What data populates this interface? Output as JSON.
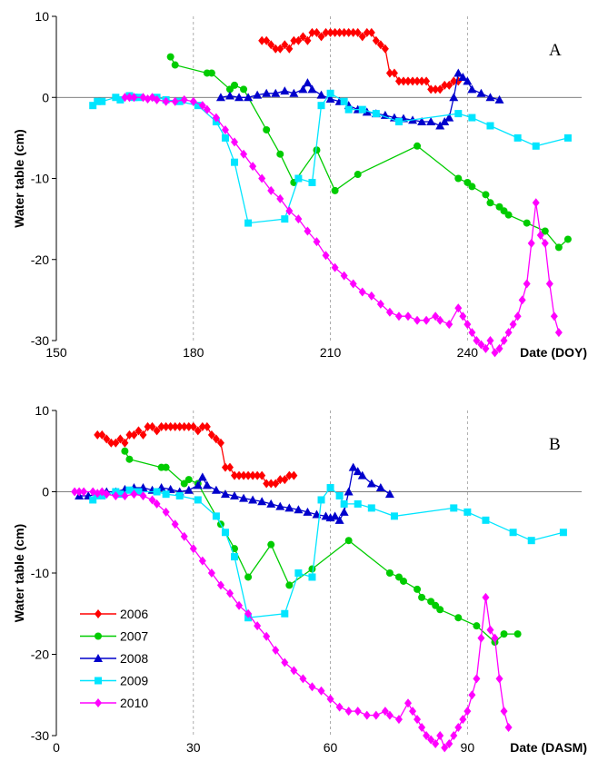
{
  "colors": {
    "2006": "#ff0000",
    "2007": "#00cc00",
    "2008": "#0000cc",
    "2009": "#00e5ff",
    "2010": "#ff00ff"
  },
  "markers": {
    "2006": "diamond",
    "2007": "circle",
    "2008": "triangle",
    "2009": "square",
    "2010": "diamond"
  },
  "legend": {
    "placement": "bottom-left",
    "entries": [
      "2006",
      "2007",
      "2008",
      "2009",
      "2010"
    ]
  },
  "chart_data": [
    {
      "type": "line",
      "panel_label": "A",
      "xlabel": "Date (DOY)",
      "ylabel": "Water table (cm)",
      "xlim": [
        150,
        265
      ],
      "ylim": [
        -30,
        10
      ],
      "xticks": [
        150,
        180,
        210,
        240
      ],
      "yticks": [
        10,
        0,
        -10,
        -20,
        -30
      ],
      "vgrid": [
        180,
        210,
        240
      ],
      "series": [
        {
          "name": "2006",
          "x": [
            195,
            196,
            197,
            198,
            199,
            200,
            201,
            202,
            203,
            204,
            205,
            206,
            207,
            208,
            209,
            210,
            211,
            212,
            213,
            214,
            215,
            216,
            217,
            218,
            219,
            220,
            221,
            222,
            223,
            224,
            225,
            226,
            227,
            228,
            229,
            230,
            231,
            232,
            233,
            234,
            235,
            236,
            237,
            238
          ],
          "y": [
            7,
            7,
            6.5,
            6,
            6,
            6.5,
            6,
            7,
            7,
            7.5,
            7,
            8,
            8,
            7.5,
            8,
            8,
            8,
            8,
            8,
            8,
            8,
            8,
            7.5,
            8,
            8,
            7,
            6.5,
            6,
            3,
            3,
            2,
            2,
            2,
            2,
            2,
            2,
            2,
            1,
            1,
            1,
            1.5,
            1.5,
            2,
            2
          ]
        },
        {
          "name": "2007",
          "x": [
            175,
            176,
            183,
            184,
            188,
            189,
            191,
            196,
            199,
            202,
            207,
            211,
            216,
            229,
            238,
            240,
            241,
            244,
            245,
            247,
            248,
            249,
            253,
            257,
            260,
            262
          ],
          "y": [
            5,
            4,
            3,
            3,
            1,
            1.5,
            1,
            -4,
            -7,
            -10.5,
            -6.5,
            -11.5,
            -9.5,
            -6,
            -10,
            -10.5,
            -11,
            -12,
            -13,
            -13.5,
            -14,
            -14.5,
            -15.5,
            -16.5,
            -18.5,
            -17.5
          ]
        },
        {
          "name": "2008",
          "x": [
            186,
            188,
            190,
            192,
            194,
            196,
            198,
            200,
            202,
            204,
            205,
            206,
            208,
            210,
            212,
            214,
            216,
            218,
            220,
            222,
            224,
            226,
            228,
            230,
            232,
            234,
            235,
            236,
            237,
            238,
            239,
            240,
            241,
            243,
            245,
            247
          ],
          "y": [
            0,
            0.2,
            0,
            0,
            0.3,
            0.5,
            0.5,
            0.8,
            0.5,
            1,
            1.8,
            1,
            0.3,
            -0.2,
            -0.5,
            -1,
            -1.5,
            -1.8,
            -2,
            -2.2,
            -2.5,
            -2.6,
            -2.8,
            -3,
            -3,
            -3.5,
            -3,
            -2.5,
            0,
            3,
            2.5,
            2,
            1,
            0.5,
            0,
            -0.3
          ]
        },
        {
          "name": "2009",
          "x": [
            158,
            159,
            160,
            163,
            164,
            166,
            167,
            168,
            172,
            174,
            177,
            181,
            185,
            187,
            189,
            192,
            200,
            203,
            206,
            208,
            210,
            213,
            214,
            217,
            220,
            225,
            238,
            241,
            245,
            251,
            255,
            262
          ],
          "y": [
            -1,
            -0.5,
            -0.5,
            0,
            -0.3,
            0.2,
            0,
            0,
            0,
            -0.3,
            -0.5,
            -1,
            -3,
            -5,
            -8,
            -15.5,
            -15,
            -10,
            -10.5,
            -1,
            0.5,
            -0.5,
            -1.5,
            -1.5,
            -2,
            -3,
            -2,
            -2.5,
            -3.5,
            -5,
            -6,
            -5
          ]
        },
        {
          "name": "2010",
          "x": [
            165,
            166,
            167,
            169,
            170,
            171,
            172,
            174,
            176,
            178,
            180,
            182,
            183,
            185,
            187,
            189,
            191,
            193,
            195,
            197,
            199,
            201,
            203,
            205,
            207,
            209,
            211,
            213,
            215,
            217,
            219,
            221,
            223,
            225,
            227,
            229,
            231,
            233,
            234,
            236,
            238,
            239,
            240,
            241,
            242,
            243,
            244,
            245,
            246,
            247,
            248,
            249,
            250,
            251,
            252,
            253,
            254,
            255,
            256,
            257,
            258,
            259,
            260
          ],
          "y": [
            0,
            0,
            0,
            0,
            -0.2,
            0,
            -0.3,
            -0.5,
            -0.5,
            -0.3,
            -0.5,
            -1,
            -1.5,
            -2.5,
            -4,
            -5.5,
            -7,
            -8.5,
            -10,
            -11.5,
            -12.5,
            -14,
            -15,
            -16.5,
            -17.8,
            -19.5,
            -21,
            -22,
            -23,
            -24,
            -24.5,
            -25.5,
            -26.5,
            -27,
            -27,
            -27.5,
            -27.5,
            -27,
            -27.5,
            -28,
            -26,
            -27,
            -28,
            -29,
            -30,
            -30.5,
            -31,
            -30,
            -31.5,
            -31,
            -30,
            -29,
            -28,
            -27,
            -25,
            -23,
            -18,
            -13,
            -17,
            -18,
            -23,
            -27,
            -29
          ]
        }
      ]
    },
    {
      "type": "line",
      "panel_label": "B",
      "xlabel": "Date (DASM)",
      "ylabel": "Water table (cm)",
      "xlim": [
        0,
        115
      ],
      "ylim": [
        -30,
        10
      ],
      "xticks": [
        0,
        30,
        60,
        90
      ],
      "yticks": [
        10,
        0,
        -10,
        -20,
        -30
      ],
      "vgrid": [
        30,
        60,
        90
      ],
      "series": [
        {
          "name": "2006",
          "x": [
            9,
            10,
            11,
            12,
            13,
            14,
            15,
            16,
            17,
            18,
            19,
            20,
            21,
            22,
            23,
            24,
            25,
            26,
            27,
            28,
            29,
            30,
            31,
            32,
            33,
            34,
            35,
            36,
            37,
            38,
            39,
            40,
            41,
            42,
            43,
            44,
            45,
            46,
            47,
            48,
            49,
            50,
            51,
            52
          ],
          "y": [
            7,
            7,
            6.5,
            6,
            6,
            6.5,
            6,
            7,
            7,
            7.5,
            7,
            8,
            8,
            7.5,
            8,
            8,
            8,
            8,
            8,
            8,
            8,
            8,
            7.5,
            8,
            8,
            7,
            6.5,
            6,
            3,
            3,
            2,
            2,
            2,
            2,
            2,
            2,
            2,
            1,
            1,
            1,
            1.5,
            1.5,
            2,
            2
          ]
        },
        {
          "name": "2007",
          "x": [
            15,
            16,
            23,
            24,
            28,
            29,
            31,
            36,
            39,
            42,
            47,
            51,
            56,
            64,
            73,
            75,
            76,
            79,
            80,
            82,
            83,
            84,
            88,
            92,
            96,
            98,
            101
          ],
          "y": [
            5,
            4,
            3,
            3,
            1,
            1.5,
            1,
            -4,
            -7,
            -10.5,
            -6.5,
            -11.5,
            -9.5,
            -6,
            -10,
            -10.5,
            -11,
            -12,
            -13,
            -13.5,
            -14,
            -14.5,
            -15.5,
            -16.5,
            -18.5,
            -17.5,
            -17.5
          ]
        },
        {
          "name": "2008",
          "x": [
            5,
            7,
            9,
            11,
            13,
            15,
            17,
            19,
            21,
            23,
            25,
            27,
            29,
            31,
            32,
            33,
            35,
            37,
            39,
            41,
            43,
            45,
            47,
            49,
            51,
            53,
            55,
            57,
            59,
            60,
            61,
            62,
            63,
            64,
            65,
            66,
            67,
            69,
            71,
            73
          ],
          "y": [
            -0.5,
            -0.5,
            -0.3,
            0,
            0,
            0.3,
            0.5,
            0.5,
            0.2,
            0.5,
            0.3,
            0,
            0.2,
            0.8,
            1.8,
            0.8,
            0.2,
            -0.3,
            -0.5,
            -0.8,
            -1,
            -1.2,
            -1.5,
            -1.8,
            -2,
            -2.2,
            -2.5,
            -2.8,
            -3,
            -3.2,
            -3,
            -3.5,
            -2.5,
            0,
            3,
            2.5,
            2,
            1,
            0.5,
            -0.3
          ]
        },
        {
          "name": "2009",
          "x": [
            8,
            9,
            10,
            13,
            14,
            16,
            17,
            18,
            22,
            24,
            27,
            31,
            35,
            37,
            39,
            42,
            50,
            53,
            56,
            58,
            60,
            62,
            63,
            66,
            69,
            74,
            87,
            90,
            94,
            100,
            104,
            111
          ],
          "y": [
            -1,
            -0.5,
            -0.5,
            0,
            -0.3,
            0.2,
            0,
            0,
            0,
            -0.3,
            -0.5,
            -1,
            -3,
            -5,
            -8,
            -15.5,
            -15,
            -10,
            -10.5,
            -1,
            0.5,
            -0.5,
            -1.5,
            -1.5,
            -2,
            -3,
            -2,
            -2.5,
            -3.5,
            -5,
            -6,
            -5
          ]
        },
        {
          "name": "2010",
          "x": [
            4,
            5,
            6,
            8,
            9,
            10,
            11,
            13,
            15,
            17,
            19,
            21,
            22,
            24,
            26,
            28,
            30,
            32,
            34,
            36,
            38,
            40,
            42,
            44,
            46,
            48,
            50,
            52,
            54,
            56,
            58,
            60,
            62,
            64,
            66,
            68,
            70,
            72,
            73,
            75,
            77,
            78,
            79,
            80,
            81,
            82,
            83,
            84,
            85,
            86,
            87,
            88,
            89,
            90,
            91,
            92,
            93,
            94,
            95,
            96,
            97,
            98,
            99
          ],
          "y": [
            0,
            0,
            0,
            0,
            -0.2,
            0,
            -0.3,
            -0.5,
            -0.5,
            -0.3,
            -0.5,
            -1,
            -1.5,
            -2.5,
            -4,
            -5.5,
            -7,
            -8.5,
            -10,
            -11.5,
            -12.5,
            -14,
            -15,
            -16.5,
            -17.8,
            -19.5,
            -21,
            -22,
            -23,
            -24,
            -24.5,
            -25.5,
            -26.5,
            -27,
            -27,
            -27.5,
            -27.5,
            -27,
            -27.5,
            -28,
            -26,
            -27,
            -28,
            -29,
            -30,
            -30.5,
            -31,
            -30,
            -31.5,
            -31,
            -30,
            -29,
            -28,
            -27,
            -25,
            -23,
            -18,
            -13,
            -17,
            -18,
            -23,
            -27,
            -29
          ]
        }
      ]
    }
  ]
}
